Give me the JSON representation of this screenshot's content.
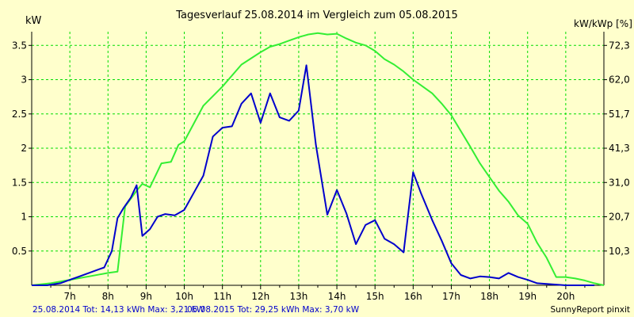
{
  "chart_data": {
    "type": "line",
    "title": "Tagesverlauf 25.08.2014 im Vergleich zum 05.08.2015",
    "ylabel_left": "kW",
    "ylabel_right": "kW/kWp [%]",
    "xlim": [
      6.0,
      21.0
    ],
    "ylim": [
      0,
      3.7
    ],
    "x_ticks": [
      7,
      8,
      9,
      10,
      11,
      12,
      13,
      14,
      15,
      16,
      17,
      18,
      19,
      20
    ],
    "x_tick_labels": [
      "7h",
      "8h",
      "9h",
      "10h",
      "11h",
      "12h",
      "13h",
      "14h",
      "15h",
      "16h",
      "17h",
      "18h",
      "19h",
      "20h"
    ],
    "y_ticks_left": [
      0.5,
      1,
      1.5,
      2,
      2.5,
      3,
      3.5
    ],
    "y_tick_labels_left": [
      "0.5",
      "1",
      "1.5",
      "2",
      "2.5",
      "3",
      "3.5"
    ],
    "y_ticks_right_values": [
      0.5,
      1.0,
      1.5,
      2.0,
      2.5,
      3.0,
      3.5
    ],
    "y_tick_labels_right": [
      "10,3",
      "20,7",
      "31,0",
      "41,3",
      "51,7",
      "62,0",
      "72,3"
    ],
    "grid": true,
    "colors": {
      "background": "#ffffcc",
      "grid": "#00dd00",
      "series_2014": "#0000cc",
      "series_2015": "#33ee33",
      "legend_2014": "#0000cc",
      "legend_2015": "#0000cc"
    },
    "legend": [
      "25.08.2014 Tot: 14,13 kWh Max: 3,21 kW",
      "05.08.2015 Tot: 29,25 kWh Max: 3,70 kW"
    ],
    "footer": "SunnyReport pinxit",
    "series": [
      {
        "name": "25.08.2014",
        "color": "#0000cc",
        "x": [
          6.0,
          6.4,
          6.75,
          7.0,
          7.25,
          7.5,
          7.75,
          7.9,
          8.1,
          8.25,
          8.4,
          8.6,
          8.75,
          8.9,
          9.1,
          9.3,
          9.5,
          9.75,
          10.0,
          10.25,
          10.5,
          10.75,
          11.0,
          11.25,
          11.5,
          11.75,
          12.0,
          12.25,
          12.5,
          12.75,
          13.0,
          13.2,
          13.45,
          13.75,
          14.0,
          14.25,
          14.5,
          14.75,
          15.0,
          15.25,
          15.5,
          15.75,
          16.0,
          16.2,
          16.5,
          16.75,
          17.0,
          17.25,
          17.5,
          17.75,
          18.0,
          18.25,
          18.5,
          18.75,
          19.0,
          19.25,
          19.5,
          19.75,
          20.0,
          20.25,
          20.5,
          20.75
        ],
        "y": [
          0.0,
          0.0,
          0.03,
          0.08,
          0.13,
          0.18,
          0.23,
          0.26,
          0.5,
          0.98,
          1.12,
          1.28,
          1.46,
          0.72,
          0.82,
          1.0,
          1.04,
          1.02,
          1.1,
          1.35,
          1.6,
          2.17,
          2.3,
          2.32,
          2.65,
          2.8,
          2.37,
          2.8,
          2.45,
          2.4,
          2.55,
          3.21,
          2.05,
          1.03,
          1.39,
          1.05,
          0.6,
          0.88,
          0.95,
          0.68,
          0.6,
          0.48,
          1.65,
          1.35,
          0.95,
          0.65,
          0.32,
          0.15,
          0.1,
          0.13,
          0.12,
          0.1,
          0.18,
          0.12,
          0.08,
          0.03,
          0.02,
          0.01,
          0.0,
          0.0,
          0.0,
          0.0
        ]
      },
      {
        "name": "05.08.2015",
        "color": "#33ee33",
        "x": [
          6.0,
          6.5,
          7.0,
          7.5,
          8.0,
          8.25,
          8.45,
          8.75,
          8.9,
          9.1,
          9.4,
          9.65,
          9.85,
          10.0,
          10.5,
          11.0,
          11.5,
          12.0,
          12.25,
          12.5,
          12.75,
          13.0,
          13.25,
          13.5,
          13.75,
          14.0,
          14.25,
          14.5,
          14.75,
          15.0,
          15.25,
          15.5,
          15.75,
          16.0,
          16.25,
          16.5,
          16.75,
          17.0,
          17.25,
          17.5,
          17.75,
          18.0,
          18.25,
          18.5,
          18.75,
          19.0,
          19.25,
          19.5,
          19.75,
          20.0,
          20.25,
          20.5,
          20.75,
          21.0
        ],
        "y": [
          0.0,
          0.03,
          0.08,
          0.13,
          0.18,
          0.2,
          1.15,
          1.38,
          1.48,
          1.43,
          1.78,
          1.8,
          2.05,
          2.1,
          2.62,
          2.9,
          3.22,
          3.4,
          3.48,
          3.52,
          3.57,
          3.62,
          3.66,
          3.68,
          3.66,
          3.67,
          3.6,
          3.54,
          3.5,
          3.42,
          3.3,
          3.22,
          3.12,
          3.0,
          2.9,
          2.8,
          2.65,
          2.48,
          2.25,
          2.02,
          1.78,
          1.58,
          1.38,
          1.22,
          1.02,
          0.9,
          0.62,
          0.4,
          0.12,
          0.12,
          0.1,
          0.07,
          0.03,
          0.0
        ]
      }
    ]
  }
}
